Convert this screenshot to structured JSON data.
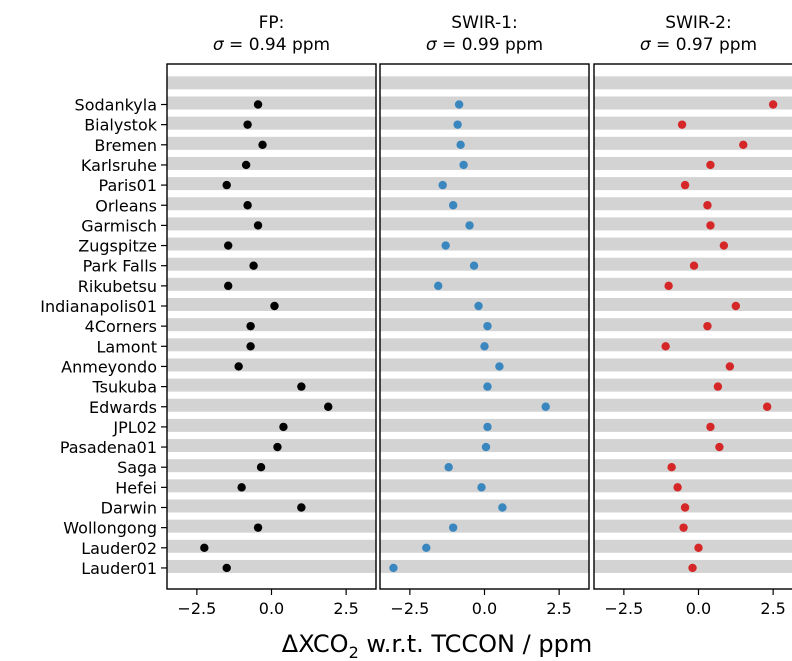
{
  "chart_data": {
    "type": "scatter",
    "xlabel": "ΔXCO",
    "xlabel_sub": "2",
    "xlabel_rest": " w.r.t. TCCON / ppm",
    "xlim": [
      -3.5,
      3.5
    ],
    "xticks": [
      -2.5,
      0.0,
      2.5
    ],
    "xtick_labels": [
      "−2.5",
      "0.0",
      "2.5"
    ],
    "band_color": "#d3d3d3",
    "sites": [
      "Sodankyla",
      "Bialystok",
      "Bremen",
      "Karlsruhe",
      "Paris01",
      "Orleans",
      "Garmisch",
      "Zugspitze",
      "Park Falls",
      "Rikubetsu",
      "Indianapolis01",
      "4Corners",
      "Lamont",
      "Anmeyondo",
      "Tsukuba",
      "Edwards",
      "JPL02",
      "Pasadena01",
      "Saga",
      "Hefei",
      "Darwin",
      "Wollongong",
      "Lauder02",
      "Lauder01"
    ],
    "panels": [
      {
        "title_line1": "FP:",
        "title_sigma": "σ",
        "title_value": " = 0.94 ppm",
        "color": "#000000",
        "values": [
          -0.45,
          -0.8,
          -0.3,
          -0.85,
          -1.5,
          -0.8,
          -0.45,
          -1.45,
          -0.6,
          -1.45,
          0.1,
          -0.7,
          -0.7,
          -1.1,
          1.0,
          1.9,
          0.4,
          0.2,
          -0.35,
          -1.0,
          1.0,
          -0.45,
          -2.25,
          -1.5
        ]
      },
      {
        "title_line1": "SWIR-1:",
        "title_sigma": "σ",
        "title_value": " = 0.99 ppm",
        "color": "#3a87c0",
        "values": [
          -0.85,
          -0.9,
          -0.8,
          -0.7,
          -1.4,
          -1.05,
          -0.5,
          -1.3,
          -0.35,
          -1.55,
          -0.2,
          0.1,
          0.0,
          0.5,
          0.1,
          2.05,
          0.1,
          0.05,
          -1.2,
          -0.1,
          0.6,
          -1.05,
          -1.95,
          -3.05
        ]
      },
      {
        "title_line1": "SWIR-2:",
        "title_sigma": "σ",
        "title_value": " = 0.97 ppm",
        "color": "#d62728",
        "values": [
          2.5,
          -0.55,
          1.5,
          0.4,
          -0.45,
          0.3,
          0.4,
          0.85,
          -0.15,
          -1.0,
          1.25,
          0.3,
          -1.1,
          1.05,
          0.65,
          2.3,
          0.4,
          0.7,
          -0.9,
          -0.7,
          -0.45,
          -0.5,
          0.0,
          -0.2
        ]
      }
    ]
  }
}
